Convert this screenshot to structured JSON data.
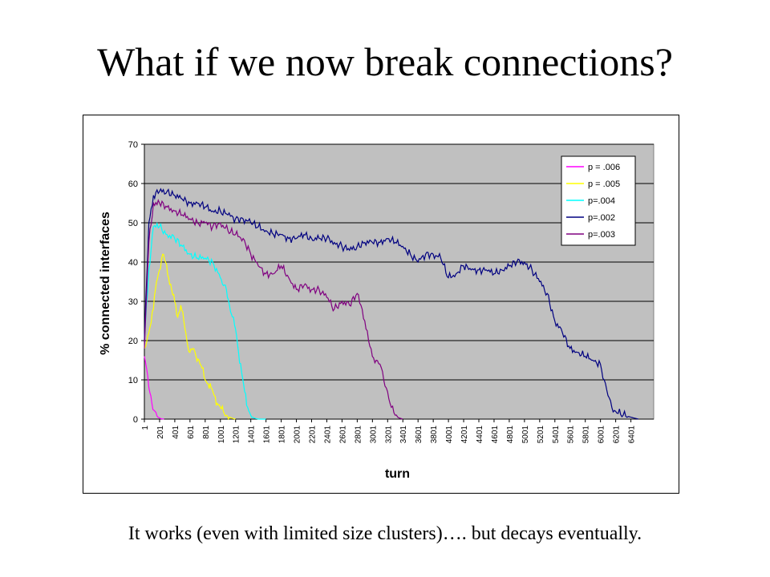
{
  "title": "What if we now break connections?",
  "caption": "It works (even with limited size clusters)…. but decays eventually.",
  "chart_data": {
    "type": "line",
    "xlabel": "turn",
    "ylabel": "% connected interfaces",
    "ylim": [
      0,
      70
    ],
    "yticks": [
      0,
      10,
      20,
      30,
      40,
      50,
      60,
      70
    ],
    "xlim": [
      1,
      6601
    ],
    "xtick_labels": [
      "1",
      "201",
      "401",
      "601",
      "801",
      "1001",
      "1201",
      "1401",
      "1601",
      "1801",
      "2001",
      "2201",
      "2401",
      "2601",
      "2801",
      "3001",
      "3201",
      "3401",
      "3601",
      "3801",
      "4001",
      "4201",
      "4401",
      "4601",
      "4801",
      "5001",
      "5201",
      "5401",
      "5601",
      "5801",
      "6001",
      "6201",
      "6401"
    ],
    "grid": true,
    "legend_position": "top-right",
    "colors": {
      "plot_bg": "#c0c0c0",
      "gridline": "#000000"
    },
    "series": [
      {
        "name": "p = .006",
        "color": "#ff00ff",
        "x": [
          1,
          30,
          60,
          100,
          140,
          180,
          220,
          260
        ],
        "y": [
          16,
          13,
          8,
          4,
          2,
          0.5,
          0.1,
          0
        ]
      },
      {
        "name": "p = .005",
        "color": "#ffff00",
        "x": [
          1,
          60,
          120,
          160,
          200,
          240,
          280,
          320,
          360,
          400,
          440,
          480,
          520,
          560,
          600,
          640,
          680,
          720,
          760,
          800,
          840,
          880,
          920,
          960,
          1000,
          1040,
          1080,
          1120,
          1160,
          1200
        ],
        "y": [
          18,
          22,
          28,
          35,
          38,
          42,
          40,
          36,
          33,
          30,
          26,
          29,
          25,
          20,
          17,
          18,
          16,
          15,
          13,
          10,
          9,
          8,
          6,
          4,
          3,
          2,
          1,
          0.5,
          0.2,
          0
        ]
      },
      {
        "name": "p=.004",
        "color": "#00ffff",
        "x": [
          1,
          60,
          120,
          200,
          300,
          400,
          500,
          600,
          700,
          800,
          900,
          1000,
          1040,
          1080,
          1120,
          1160,
          1200,
          1240,
          1280,
          1320,
          1360,
          1400,
          1440,
          1500,
          1600
        ],
        "y": [
          20,
          38,
          49,
          49,
          47,
          46,
          44,
          42,
          41,
          41,
          40,
          36,
          34,
          33,
          29,
          26,
          23,
          17,
          12,
          7,
          3,
          1,
          0.3,
          0,
          0
        ]
      },
      {
        "name": "p=.002",
        "color": "#000080",
        "x": [
          1,
          60,
          120,
          200,
          300,
          400,
          500,
          600,
          700,
          800,
          900,
          1000,
          1100,
          1200,
          1300,
          1400,
          1500,
          1600,
          1700,
          1800,
          1900,
          2000,
          2100,
          2200,
          2300,
          2400,
          2500,
          2600,
          2700,
          2800,
          2900,
          3000,
          3100,
          3200,
          3300,
          3400,
          3500,
          3600,
          3700,
          3800,
          3900,
          4000,
          4100,
          4200,
          4300,
          4400,
          4500,
          4600,
          4700,
          4800,
          4900,
          5000,
          5100,
          5200,
          5300,
          5400,
          5500,
          5600,
          5700,
          5800,
          5900,
          6000,
          6050,
          6100,
          6150,
          6200,
          6300,
          6400,
          6500
        ],
        "y": [
          20,
          50,
          57,
          58,
          58,
          57,
          56,
          55,
          55,
          54,
          53,
          53,
          52,
          51,
          51,
          50,
          49,
          48,
          47,
          47,
          46,
          46,
          47,
          46,
          46,
          46,
          45,
          44,
          43,
          44,
          45,
          45,
          45,
          46,
          45,
          44,
          42,
          40,
          42,
          42,
          41,
          36,
          37,
          39,
          38,
          38,
          38,
          37,
          38,
          39,
          40,
          40,
          38,
          35,
          32,
          25,
          22,
          18,
          17,
          16,
          15,
          14,
          10,
          6,
          3,
          2,
          1,
          0.5,
          0
        ]
      },
      {
        "name": "p=.003",
        "color": "#800080",
        "x": [
          1,
          60,
          120,
          200,
          300,
          400,
          500,
          600,
          700,
          800,
          900,
          1000,
          1100,
          1200,
          1300,
          1400,
          1500,
          1600,
          1700,
          1800,
          1900,
          2000,
          2100,
          2200,
          2300,
          2400,
          2500,
          2600,
          2700,
          2800,
          2850,
          2900,
          2950,
          3000,
          3050,
          3100,
          3150,
          3200,
          3250,
          3300,
          3350,
          3400
        ],
        "y": [
          18,
          45,
          55,
          55,
          54,
          53,
          52,
          51,
          50,
          50,
          49,
          50,
          48,
          47,
          46,
          42,
          39,
          37,
          37,
          39,
          36,
          33,
          34,
          33,
          33,
          31,
          28,
          30,
          29,
          32,
          29,
          25,
          20,
          16,
          15,
          14,
          10,
          7,
          3,
          1,
          0.3,
          0
        ]
      }
    ]
  }
}
